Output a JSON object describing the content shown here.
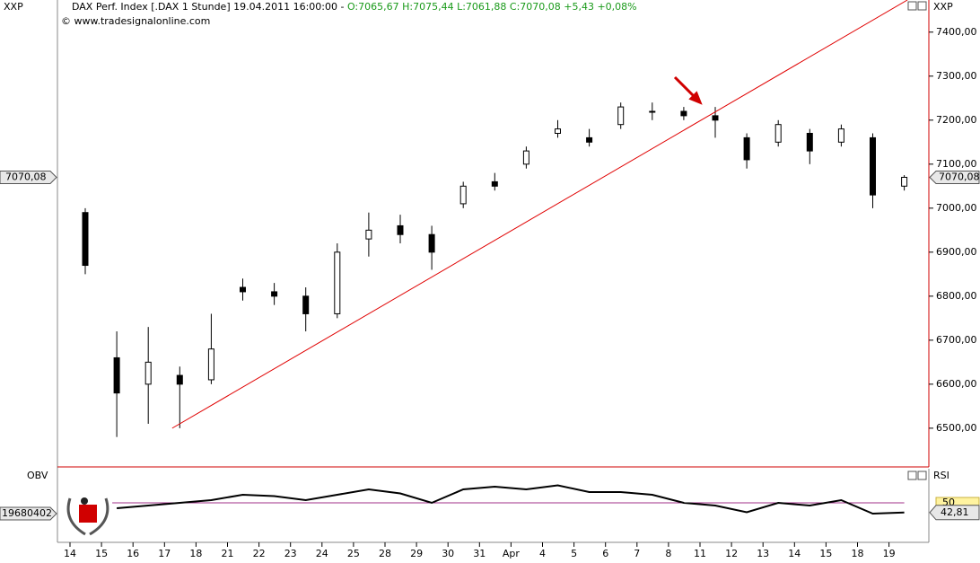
{
  "header": {
    "symbol": "XXP",
    "title": "DAX Perf. Index [.DAX  1 Stunde] 19.04.2011 16:00:00 -",
    "quote": "O:7065,67 H:7075,44 L:7061,88 C:7070,08 +5,43 +0,08%",
    "source": "© www.tradesignalonline.com"
  },
  "chart_data": [
    {
      "type": "candlestick",
      "color": "#000000",
      "up_color": "#ffffff",
      "categories": [
        "14",
        "15",
        "16",
        "17",
        "18",
        "21",
        "22",
        "23",
        "24",
        "25",
        "28",
        "29",
        "30",
        "31",
        "Apr",
        "4",
        "5",
        "6",
        "7",
        "8",
        "11",
        "12",
        "13",
        "14",
        "15",
        "18",
        "19"
      ],
      "open": [
        6990,
        6660,
        6600,
        6620,
        6610,
        6820,
        6810,
        6800,
        6760,
        6930,
        6960,
        6940,
        7010,
        7060,
        7100,
        7170,
        7160,
        7190,
        7220,
        7220,
        7210,
        7160,
        7150,
        7170,
        7150,
        7160,
        7050
      ],
      "high": [
        7000,
        6720,
        6730,
        6640,
        6760,
        6840,
        6830,
        6820,
        6920,
        6990,
        6985,
        6960,
        7060,
        7080,
        7140,
        7200,
        7180,
        7240,
        7240,
        7230,
        7230,
        7170,
        7200,
        7180,
        7190,
        7170,
        7075
      ],
      "low": [
        6850,
        6480,
        6510,
        6500,
        6600,
        6790,
        6780,
        6720,
        6750,
        6890,
        6920,
        6860,
        7000,
        7040,
        7090,
        7160,
        7140,
        7180,
        7200,
        7200,
        7160,
        7090,
        7140,
        7100,
        7140,
        7000,
        7040
      ],
      "close": [
        6870,
        6580,
        6650,
        6600,
        6680,
        6810,
        6800,
        6760,
        6900,
        6950,
        6940,
        6900,
        7050,
        7050,
        7130,
        7180,
        7150,
        7230,
        7220,
        7210,
        7200,
        7110,
        7190,
        7130,
        7180,
        7030,
        7070.08
      ],
      "ylim": [
        6412,
        7473
      ],
      "yticks": [
        {
          "value": 6500,
          "label": "6500,00"
        },
        {
          "value": 6600,
          "label": "6600,00"
        },
        {
          "value": 6700,
          "label": "6700,00"
        },
        {
          "value": 6800,
          "label": "6800,00"
        },
        {
          "value": 6900,
          "label": "6900,00"
        },
        {
          "value": 7000,
          "label": "7000,00"
        },
        {
          "value": 7100,
          "label": "7100,00"
        },
        {
          "value": 7200,
          "label": "7200,00"
        },
        {
          "value": 7300,
          "label": "7300,00"
        },
        {
          "value": 7400,
          "label": "7400,00"
        }
      ],
      "last_price": {
        "value": 7070.08,
        "label": "7070,08"
      },
      "trendline": {
        "color": "#e00000",
        "x": [
          2.76,
          26.1
        ],
        "y": [
          6500,
          7473
        ]
      }
    },
    {
      "type": "line",
      "name": "RSI",
      "left_label": "OBV",
      "left_value": "19680402",
      "color": "#000000",
      "values": [
        null,
        46,
        48,
        50,
        52,
        56,
        55,
        52,
        56,
        60,
        57,
        50,
        60,
        62,
        60,
        63,
        58,
        58,
        56,
        50,
        48,
        43,
        50,
        48,
        52,
        42,
        42.81
      ],
      "value_labels": [
        null,
        null,
        null,
        null,
        null,
        null,
        null,
        null,
        null,
        null,
        null,
        null,
        null,
        null,
        null,
        null,
        null,
        null,
        null,
        null,
        null,
        null,
        null,
        null,
        null,
        null,
        "42,81"
      ],
      "ylim": [
        30,
        70
      ],
      "yticks": [
        50
      ],
      "grid_color": "#a0308a"
    }
  ]
}
